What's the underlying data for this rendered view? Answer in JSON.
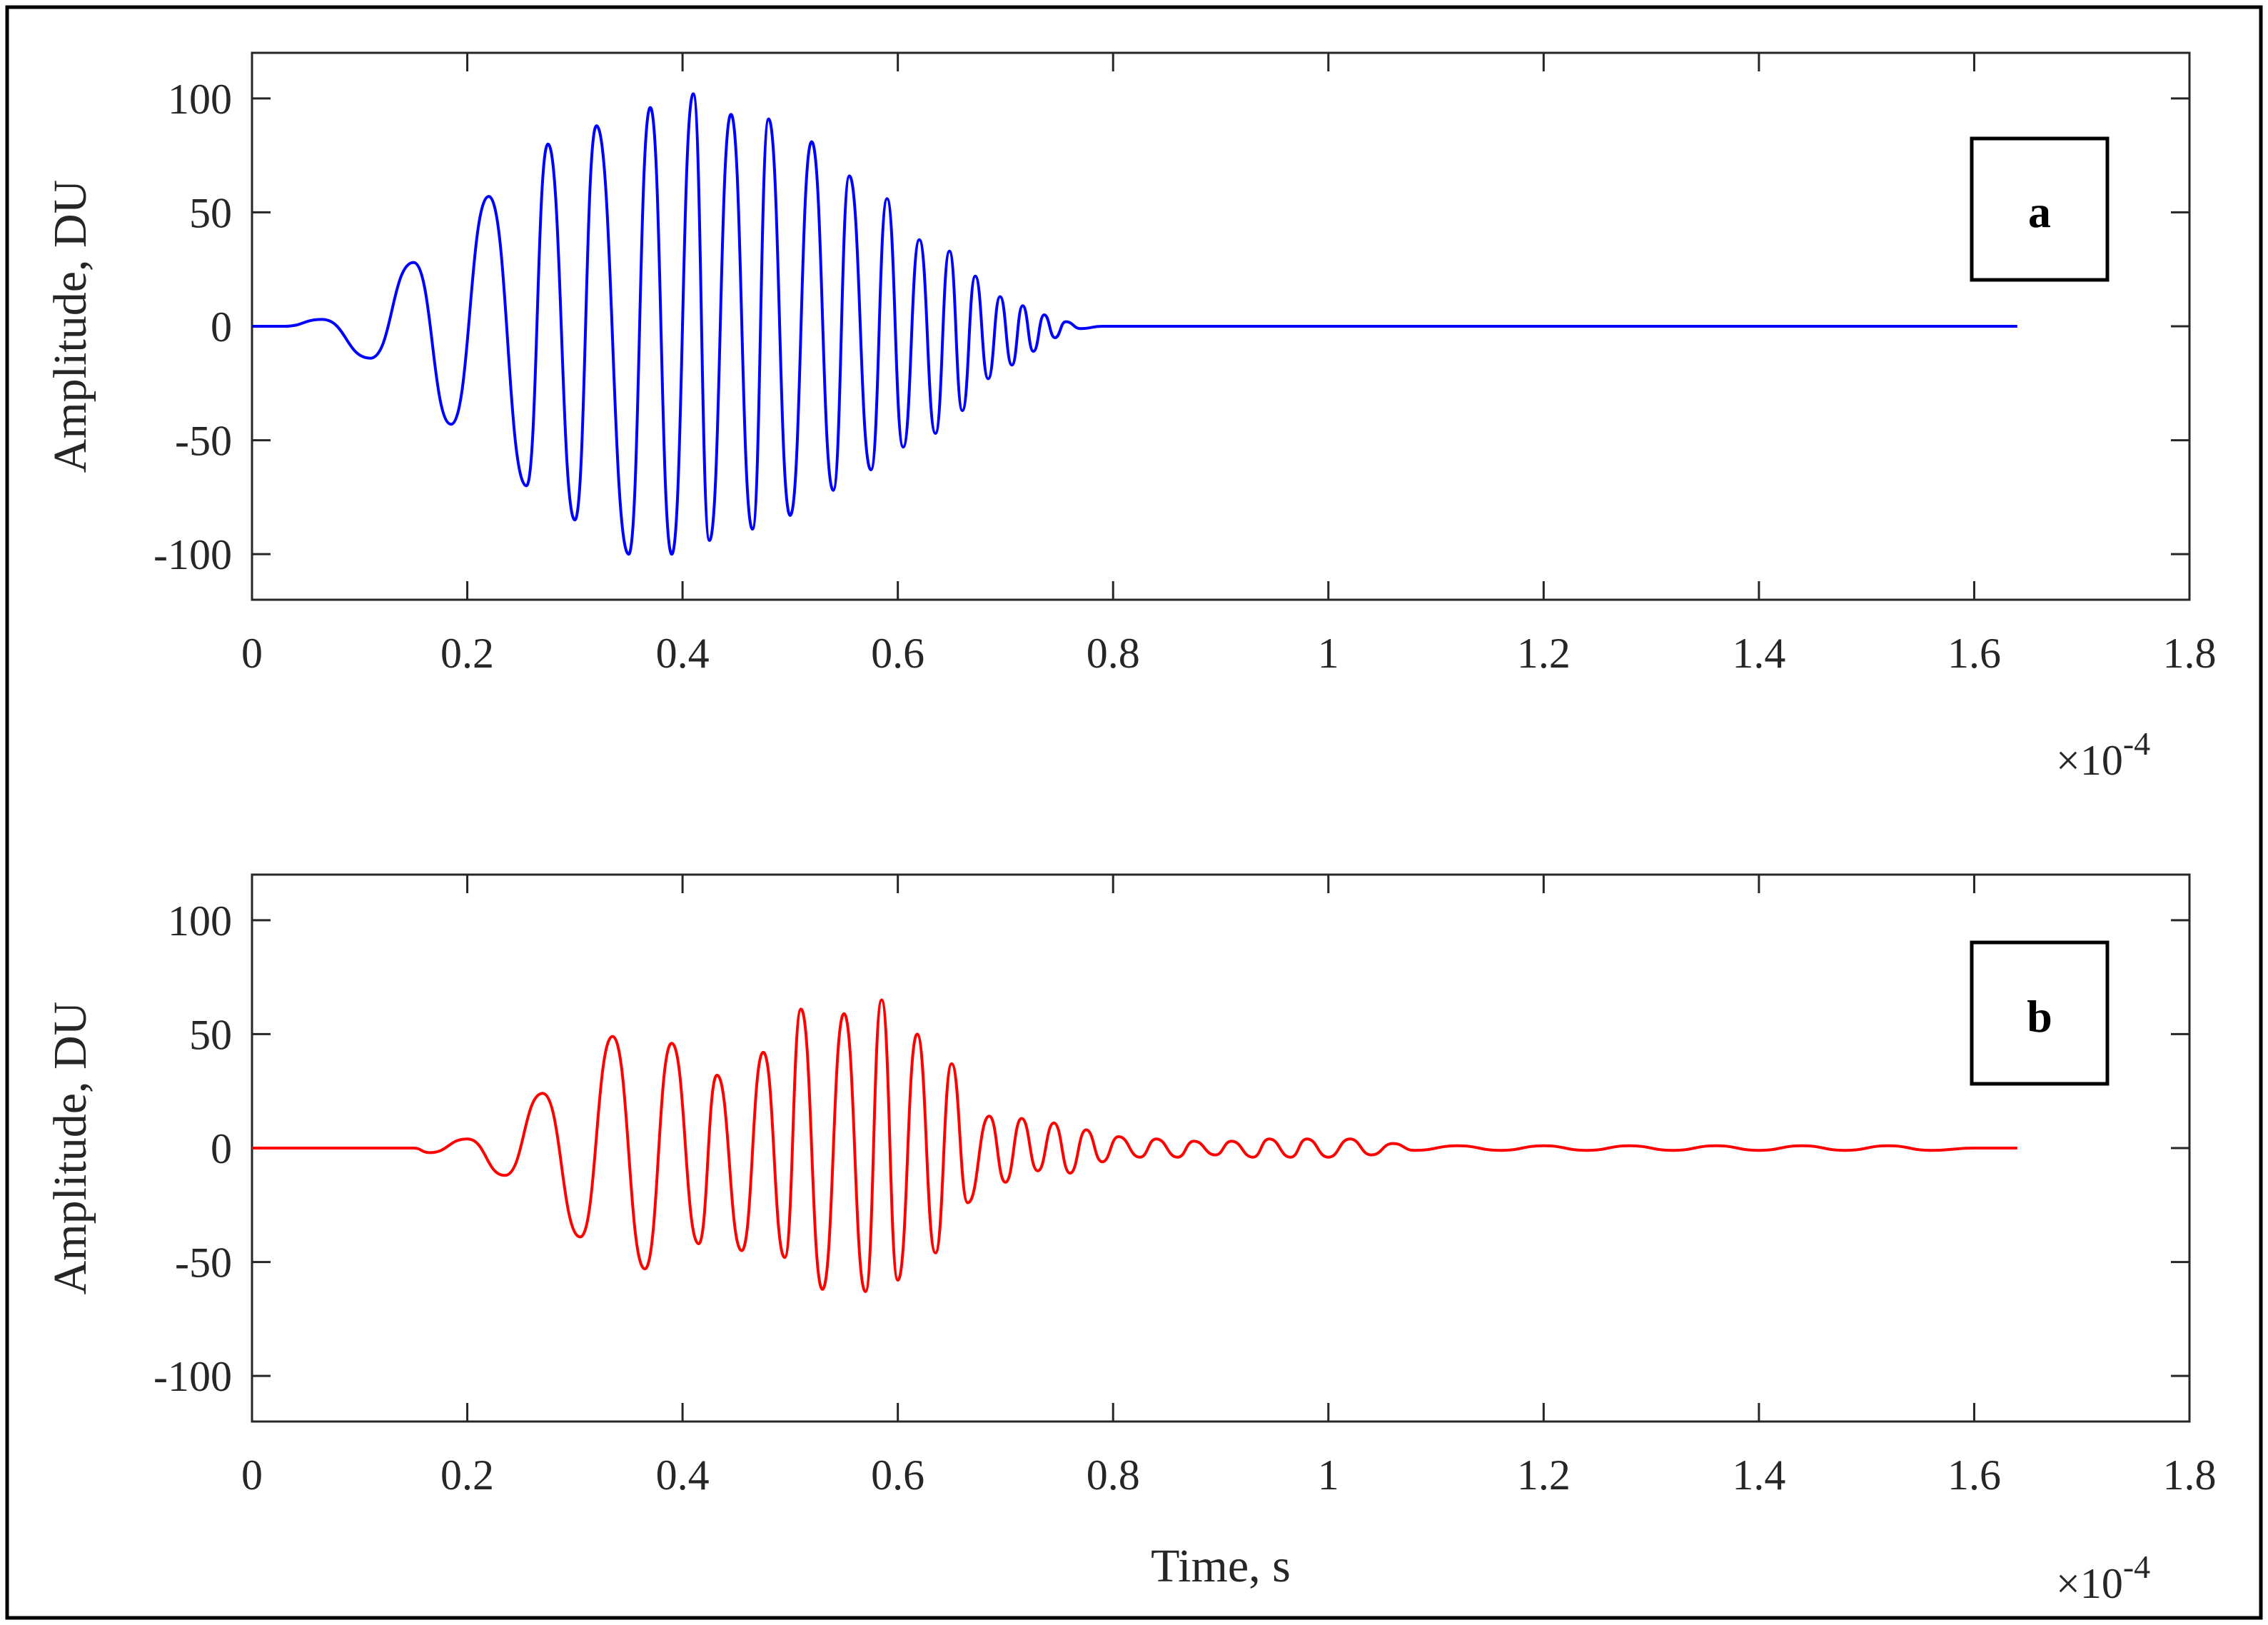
{
  "chart_data": [
    {
      "type": "line",
      "panel_label": "a",
      "ylabel": "Amplitude, DU",
      "xlabel": "",
      "x_multiplier": "×10",
      "x_multiplier_exponent": "-4",
      "xlim": [
        0,
        1.8
      ],
      "ylim": [
        -120,
        120
      ],
      "xticks": [
        0,
        0.2,
        0.4,
        0.6,
        0.8,
        1,
        1.2,
        1.4,
        1.6,
        1.8
      ],
      "xtick_labels": [
        "0",
        "0.2",
        "0.4",
        "0.6",
        "0.8",
        "1",
        "1.2",
        "1.4",
        "1.6",
        "1.8"
      ],
      "yticks": [
        100,
        50,
        0,
        -50,
        -100
      ],
      "ytick_labels": [
        "100",
        "50",
        "0",
        "-50",
        "-100"
      ],
      "grid": false,
      "series": [
        {
          "color": "#0000ff",
          "x": [
            0,
            0.03,
            0.065,
            0.11,
            0.15,
            0.185,
            0.22,
            0.255,
            0.275,
            0.3,
            0.32,
            0.35,
            0.37,
            0.39,
            0.41,
            0.425,
            0.445,
            0.465,
            0.48,
            0.5,
            0.52,
            0.54,
            0.555,
            0.575,
            0.59,
            0.605,
            0.62,
            0.635,
            0.648,
            0.66,
            0.672,
            0.684,
            0.695,
            0.706,
            0.716,
            0.726,
            0.736,
            0.746,
            0.756,
            0.77,
            0.79,
            1.64
          ],
          "y": [
            0,
            0,
            3,
            -14,
            28,
            -43,
            57,
            -70,
            80,
            -85,
            88,
            -100,
            96,
            -100,
            102,
            -94,
            93,
            -89,
            91,
            -83,
            81,
            -72,
            66,
            -63,
            56,
            -53,
            38,
            -47,
            33,
            -37,
            22,
            -23,
            13,
            -17,
            9,
            -11,
            5,
            -5,
            2,
            -1,
            0,
            0
          ]
        }
      ]
    },
    {
      "type": "line",
      "panel_label": "b",
      "ylabel": "Amplitude, DU",
      "xlabel": "Time, s",
      "x_multiplier": "×10",
      "x_multiplier_exponent": "-4",
      "xlim": [
        0,
        1.8
      ],
      "ylim": [
        -120,
        120
      ],
      "xticks": [
        0,
        0.2,
        0.4,
        0.6,
        0.8,
        1,
        1.2,
        1.4,
        1.6,
        1.8
      ],
      "xtick_labels": [
        "0",
        "0.2",
        "0.4",
        "0.6",
        "0.8",
        "1",
        "1.2",
        "1.4",
        "1.6",
        "1.8"
      ],
      "yticks": [
        100,
        50,
        0,
        -50,
        -100
      ],
      "ytick_labels": [
        "100",
        "50",
        "0",
        "-50",
        "-100"
      ],
      "grid": false,
      "series": [
        {
          "color": "#ff0000",
          "x": [
            0,
            0.15,
            0.165,
            0.2,
            0.235,
            0.27,
            0.305,
            0.335,
            0.365,
            0.39,
            0.415,
            0.432,
            0.455,
            0.475,
            0.495,
            0.51,
            0.53,
            0.55,
            0.57,
            0.585,
            0.6,
            0.618,
            0.635,
            0.65,
            0.665,
            0.685,
            0.7,
            0.715,
            0.73,
            0.745,
            0.76,
            0.775,
            0.79,
            0.805,
            0.825,
            0.84,
            0.86,
            0.875,
            0.895,
            0.91,
            0.93,
            0.945,
            0.965,
            0.98,
            1.0,
            1.02,
            1.04,
            1.06,
            1.08,
            1.12,
            1.16,
            1.2,
            1.24,
            1.28,
            1.32,
            1.36,
            1.4,
            1.44,
            1.48,
            1.52,
            1.56,
            1.6,
            1.64
          ],
          "y": [
            0,
            0,
            -2,
            4,
            -12,
            24,
            -39,
            49,
            -53,
            46,
            -42,
            32,
            -45,
            42,
            -48,
            61,
            -62,
            59,
            -63,
            65,
            -58,
            50,
            -46,
            37,
            -24,
            14,
            -15,
            13,
            -10,
            11,
            -11,
            8,
            -6,
            5,
            -4,
            4,
            -4,
            3,
            -3,
            3,
            -4,
            4,
            -4,
            4,
            -4,
            4,
            -3,
            2,
            -1,
            1,
            -1,
            1,
            -1,
            1,
            -1,
            1,
            -1,
            1,
            -1,
            1,
            -1,
            0,
            0
          ]
        }
      ]
    }
  ]
}
